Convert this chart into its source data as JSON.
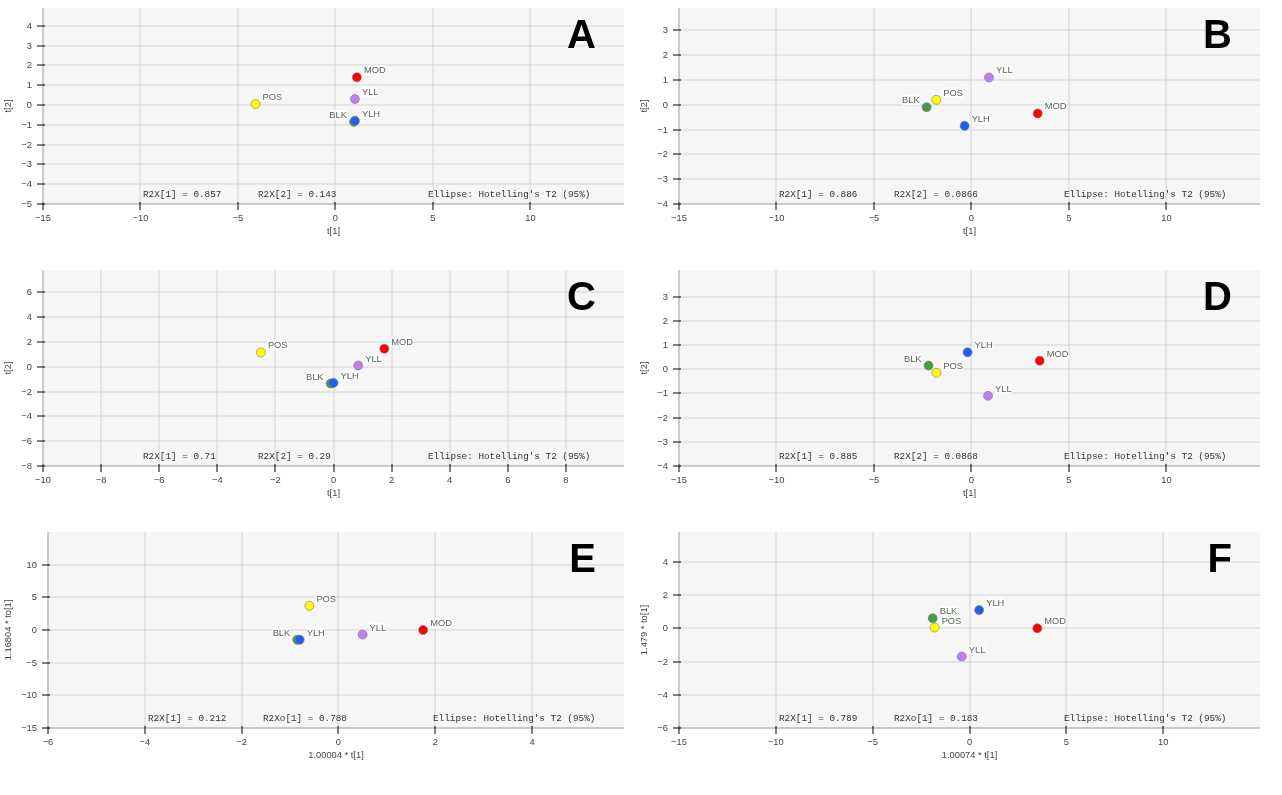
{
  "chart_data": [
    {
      "type": "scatter",
      "title": "A",
      "xlabel": "t[1]",
      "ylabel": "t[2]",
      "xlim": [
        -15,
        14.8
      ],
      "ylim": [
        -5,
        4.9
      ],
      "xticks": [
        -15,
        -10,
        -5,
        0,
        5,
        10
      ],
      "yticks": [
        -5,
        -4,
        -3,
        -2,
        -1,
        0,
        1,
        2,
        3,
        4
      ],
      "grid": true,
      "marker": "circle",
      "annotations": [
        "R2X[1] = 0.857",
        "R2X[2] = 0.143",
        "Ellipse: Hotelling's T2 (95%)"
      ],
      "series": [
        {
          "name": "MOD",
          "color": "#ff0000",
          "x": [
            1.1
          ],
          "values": [
            1.4
          ]
        },
        {
          "name": "YLL",
          "color": "#c080f0",
          "x": [
            1.0
          ],
          "values": [
            0.3
          ]
        },
        {
          "name": "POS",
          "color": "#ffff00",
          "x": [
            -4.1
          ],
          "values": [
            0.05
          ]
        },
        {
          "name": "BLK",
          "color": "#40a040",
          "x": [
            0.95
          ],
          "values": [
            -0.85
          ]
        },
        {
          "name": "YLH",
          "color": "#2060f0",
          "x": [
            1.0
          ],
          "values": [
            -0.8
          ]
        }
      ]
    },
    {
      "type": "scatter",
      "title": "B",
      "xlabel": "t[1]",
      "ylabel": "t[2]",
      "xlim": [
        -15,
        14.8
      ],
      "ylim": [
        -4,
        3.9
      ],
      "xticks": [
        -15,
        -10,
        -5,
        0,
        5,
        10
      ],
      "yticks": [
        -4,
        -3,
        -2,
        -1,
        0,
        1,
        2,
        3
      ],
      "grid": true,
      "marker": "circle",
      "annotations": [
        "R2X[1] = 0.886",
        "R2X[2] = 0.0866",
        "Ellipse: Hotelling's T2 (95%)"
      ],
      "series": [
        {
          "name": "YLL",
          "color": "#c080f0",
          "x": [
            0.9
          ],
          "values": [
            1.1
          ]
        },
        {
          "name": "POS",
          "color": "#ffff00",
          "x": [
            -1.8
          ],
          "values": [
            0.2
          ]
        },
        {
          "name": "BLK",
          "color": "#40a040",
          "x": [
            -2.3
          ],
          "values": [
            -0.1
          ]
        },
        {
          "name": "YLH",
          "color": "#2060f0",
          "x": [
            -0.35
          ],
          "values": [
            -0.85
          ]
        },
        {
          "name": "MOD",
          "color": "#ff0000",
          "x": [
            3.4
          ],
          "values": [
            -0.35
          ]
        }
      ]
    },
    {
      "type": "scatter",
      "title": "C",
      "xlabel": "t[1]",
      "ylabel": "t[2]",
      "xlim": [
        -10,
        10
      ],
      "ylim": [
        -8,
        7.8
      ],
      "xticks": [
        -10,
        -8,
        -6,
        -4,
        -2,
        0,
        2,
        4,
        6,
        8
      ],
      "yticks": [
        -8,
        -6,
        -4,
        -2,
        0,
        2,
        4,
        6
      ],
      "grid": true,
      "marker": "circle",
      "annotations": [
        "R2X[1] = 0.71",
        "R2X[2] = 0.29",
        "Ellipse: Hotelling's T2 (95%)"
      ],
      "series": [
        {
          "name": "MOD",
          "color": "#ff0000",
          "x": [
            1.75
          ],
          "values": [
            1.45
          ]
        },
        {
          "name": "POS",
          "color": "#ffff00",
          "x": [
            -2.5
          ],
          "values": [
            1.15
          ]
        },
        {
          "name": "YLL",
          "color": "#c080f0",
          "x": [
            0.85
          ],
          "values": [
            0.1
          ]
        },
        {
          "name": "BLK",
          "color": "#40a040",
          "x": [
            -0.1
          ],
          "values": [
            -1.35
          ]
        },
        {
          "name": "YLH",
          "color": "#2060f0",
          "x": [
            0.0
          ],
          "values": [
            -1.3
          ]
        }
      ]
    },
    {
      "type": "scatter",
      "title": "D",
      "xlabel": "t[1]",
      "ylabel": "t[2]",
      "xlim": [
        -15,
        14.8
      ],
      "ylim": [
        -4,
        4.1
      ],
      "xticks": [
        -15,
        -10,
        -5,
        0,
        5,
        10
      ],
      "yticks": [
        -4,
        -3,
        -2,
        -1,
        0,
        1,
        2,
        3
      ],
      "grid": true,
      "marker": "circle",
      "annotations": [
        "R2X[1] = 0.885",
        "R2X[2] = 0.0868",
        "Ellipse: Hotelling's T2 (95%)"
      ],
      "series": [
        {
          "name": "YLH",
          "color": "#2060f0",
          "x": [
            -0.2
          ],
          "values": [
            0.7
          ]
        },
        {
          "name": "MOD",
          "color": "#ff0000",
          "x": [
            3.5
          ],
          "values": [
            0.35
          ]
        },
        {
          "name": "BLK",
          "color": "#40a040",
          "x": [
            -2.2
          ],
          "values": [
            0.15
          ]
        },
        {
          "name": "POS",
          "color": "#ffff00",
          "x": [
            -1.8
          ],
          "values": [
            -0.15
          ]
        },
        {
          "name": "YLL",
          "color": "#c080f0",
          "x": [
            0.85
          ],
          "values": [
            -1.1
          ]
        }
      ]
    },
    {
      "type": "scatter",
      "title": "E",
      "xlabel": "1.00004 * t[1]",
      "ylabel": "1.16804 * to[1]",
      "xlim": [
        -6,
        5.9
      ],
      "ylim": [
        -15,
        15
      ],
      "xticks": [
        -6,
        -4,
        -2,
        0,
        2,
        4
      ],
      "yticks": [
        -15,
        -10,
        -5,
        0,
        5,
        10
      ],
      "grid": true,
      "marker": "circle",
      "annotations": [
        "R2X[1] = 0.212",
        "R2Xo[1] = 0.788",
        "Ellipse: Hotelling's T2 (95%)"
      ],
      "series": [
        {
          "name": "POS",
          "color": "#ffff00",
          "x": [
            -0.6
          ],
          "values": [
            3.7
          ]
        },
        {
          "name": "MOD",
          "color": "#ff0000",
          "x": [
            1.75
          ],
          "values": [
            0
          ]
        },
        {
          "name": "YLL",
          "color": "#c080f0",
          "x": [
            0.5
          ],
          "values": [
            -0.7
          ]
        },
        {
          "name": "BLK",
          "color": "#40a040",
          "x": [
            -0.85
          ],
          "values": [
            -1.5
          ]
        },
        {
          "name": "YLH",
          "color": "#2060f0",
          "x": [
            -0.8
          ],
          "values": [
            -1.5
          ]
        }
      ]
    },
    {
      "type": "scatter",
      "title": "F",
      "xlabel": "1.00074 * t[1]",
      "ylabel": "1.479 * to[1]",
      "xlim": [
        -15,
        15
      ],
      "ylim": [
        -6,
        5.8
      ],
      "xticks": [
        -15,
        -10,
        -5,
        0,
        5,
        10
      ],
      "yticks": [
        -6,
        -4,
        -2,
        0,
        2,
        4
      ],
      "grid": true,
      "marker": "circle",
      "annotations": [
        "R2X[1] = 0.789",
        "R2Xo[1] = 0.183",
        "Ellipse: Hotelling's T2 (95%)"
      ],
      "series": [
        {
          "name": "YLH",
          "color": "#2060f0",
          "x": [
            0.5
          ],
          "values": [
            1.1
          ]
        },
        {
          "name": "BLK",
          "color": "#40a040",
          "x": [
            -1.9
          ],
          "values": [
            0.6
          ]
        },
        {
          "name": "POS",
          "color": "#ffff00",
          "x": [
            -1.8
          ],
          "values": [
            0.05
          ]
        },
        {
          "name": "MOD",
          "color": "#ff0000",
          "x": [
            3.5
          ],
          "values": [
            0
          ]
        },
        {
          "name": "YLL",
          "color": "#c080f0",
          "x": [
            -0.4
          ],
          "values": [
            -1.7
          ]
        }
      ]
    }
  ]
}
